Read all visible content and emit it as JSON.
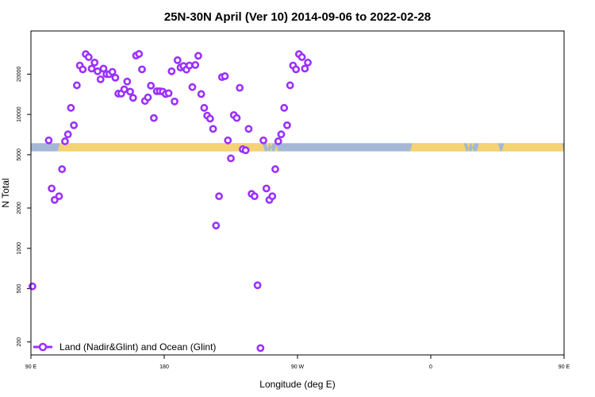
{
  "chart_data": {
    "type": "scatter",
    "title": "25N-30N April (Ver 10)   2014-09-06 to 2022-02-28",
    "xlabel": "Longitude (deg E)",
    "ylabel": "N Total",
    "y_scale": "log",
    "ylim": [
      160,
      42000
    ],
    "xlim": [
      90,
      450
    ],
    "x_ticks": [
      {
        "value": 90,
        "label": "90 E"
      },
      {
        "value": 180,
        "label": "180"
      },
      {
        "value": 270,
        "label": "90 W"
      },
      {
        "value": 360,
        "label": "0"
      },
      {
        "value": 450,
        "label": "90 E"
      },
      {
        "value": 540,
        "label": "180"
      }
    ],
    "y_ticks": [
      {
        "value": 200,
        "label": "200"
      },
      {
        "value": 500,
        "label": "500"
      },
      {
        "value": 1000,
        "label": "1000"
      },
      {
        "value": 2000,
        "label": "2000"
      },
      {
        "value": 5000,
        "label": "5000"
      },
      {
        "value": 10000,
        "label": "10000"
      },
      {
        "value": 20000,
        "label": "20000"
      }
    ],
    "legend": {
      "position": "bottom-left",
      "label": "Land (Nadir&Glint) and Ocean (Glint)"
    },
    "colors": {
      "series": "#9b30ff",
      "ocean": "#a4b8d6",
      "land": "#f5d273"
    },
    "map_strip": {
      "y_min": 5300,
      "y_max": 6100
    },
    "land_segments": [
      [
        108,
        248
      ],
      [
        249.5,
        250.5
      ],
      [
        251.5,
        253
      ],
      [
        254.5,
        257
      ],
      [
        346,
        384
      ],
      [
        385,
        386
      ],
      [
        387.5,
        389
      ],
      [
        391,
        407
      ],
      [
        408,
        468
      ],
      [
        500,
        540
      ]
    ],
    "series": [
      {
        "name": "Land (Nadir&Glint) and Ocean (Glint)",
        "points": [
          [
            91,
            520
          ],
          [
            102,
            6400
          ],
          [
            104,
            2800
          ],
          [
            106,
            2300
          ],
          [
            109,
            2450
          ],
          [
            111,
            3900
          ],
          [
            113,
            6300
          ],
          [
            115,
            7100
          ],
          [
            117,
            11200
          ],
          [
            119,
            8300
          ],
          [
            121,
            16500
          ],
          [
            123,
            23200
          ],
          [
            125,
            21700
          ],
          [
            127,
            28200
          ],
          [
            129,
            26800
          ],
          [
            131,
            22000
          ],
          [
            133,
            24400
          ],
          [
            135,
            21000
          ],
          [
            137,
            18300
          ],
          [
            139,
            22000
          ],
          [
            141,
            20000
          ],
          [
            143,
            20000
          ],
          [
            145,
            20800
          ],
          [
            147,
            18800
          ],
          [
            149,
            14300
          ],
          [
            151,
            14300
          ],
          [
            153,
            15400
          ],
          [
            155,
            17600
          ],
          [
            157,
            14800
          ],
          [
            159,
            13300
          ],
          [
            161,
            27500
          ],
          [
            163,
            28300
          ],
          [
            165,
            21700
          ],
          [
            167,
            12600
          ],
          [
            169,
            13400
          ],
          [
            171,
            16400
          ],
          [
            173,
            9400
          ],
          [
            175,
            14900
          ],
          [
            177,
            14900
          ],
          [
            179,
            14800
          ],
          [
            181,
            14200
          ],
          [
            183,
            14400
          ],
          [
            185,
            21000
          ],
          [
            187,
            12500
          ],
          [
            189,
            25400
          ],
          [
            191,
            22400
          ],
          [
            193,
            23000
          ],
          [
            195,
            21600
          ],
          [
            197,
            23200
          ],
          [
            199,
            16000
          ],
          [
            201,
            23400
          ],
          [
            203,
            27400
          ],
          [
            205,
            14200
          ],
          [
            207,
            11200
          ],
          [
            209,
            9800
          ],
          [
            211,
            9300
          ],
          [
            213,
            7800
          ],
          [
            215,
            1480
          ],
          [
            217,
            2450
          ],
          [
            219,
            19000
          ],
          [
            221,
            19300
          ],
          [
            223,
            6400
          ],
          [
            225,
            4700
          ],
          [
            227,
            9900
          ],
          [
            229,
            9400
          ],
          [
            231,
            15800
          ],
          [
            233,
            5500
          ],
          [
            235,
            5400
          ],
          [
            237,
            7800
          ],
          [
            239,
            2550
          ],
          [
            241,
            2450
          ],
          [
            243,
            530
          ],
          [
            245,
            180
          ],
          [
            247,
            6400
          ],
          [
            249,
            2800
          ],
          [
            251,
            2300
          ],
          [
            253,
            2450
          ],
          [
            255,
            3900
          ],
          [
            257,
            6300
          ],
          [
            259,
            7100
          ],
          [
            261,
            11200
          ],
          [
            263,
            8300
          ],
          [
            265,
            16500
          ],
          [
            267,
            23200
          ],
          [
            269,
            21700
          ],
          [
            271,
            28200
          ],
          [
            273,
            26800
          ],
          [
            275,
            22000
          ],
          [
            277,
            24400
          ]
        ]
      }
    ]
  }
}
